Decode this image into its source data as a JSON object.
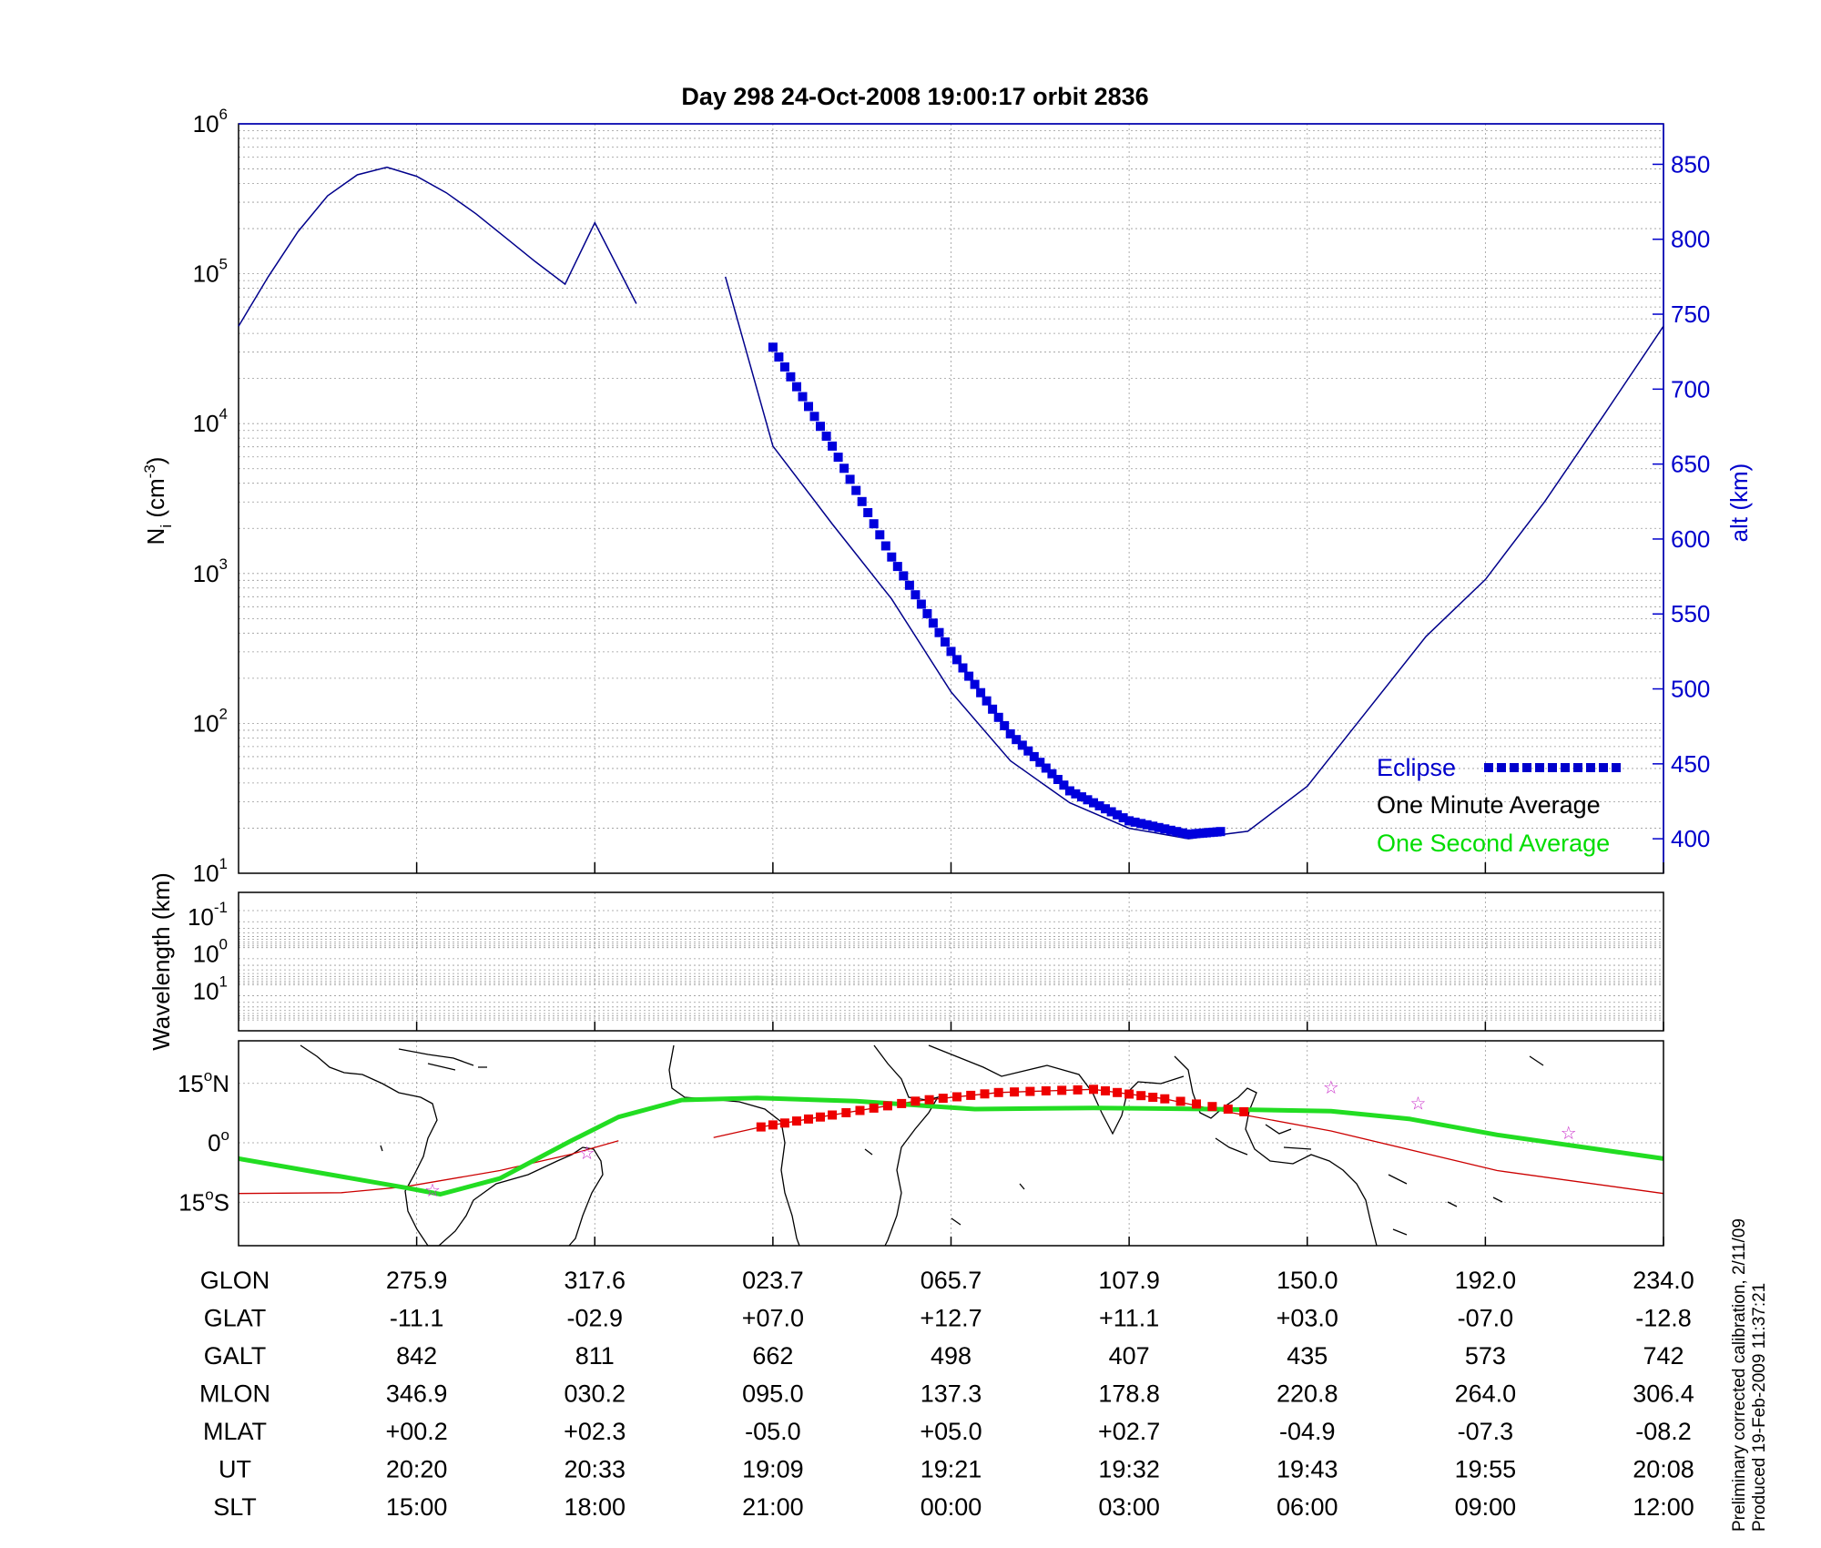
{
  "title": "Day 298  24-Oct-2008 19:00:17   orbit 2836",
  "chart_data": [
    {
      "panel": "ion-density",
      "type": "line",
      "ylabel": "N",
      "ylabel_sub": "i",
      "ylabel_unit_open": " (cm",
      "ylabel_unit_exp": "-3",
      "ylabel_unit_close": ")",
      "yscale": "log",
      "ylim": [
        10,
        1000000
      ],
      "yticks": [
        {
          "base": "10",
          "exp": "1",
          "value": 10
        },
        {
          "base": "10",
          "exp": "2",
          "value": 100
        },
        {
          "base": "10",
          "exp": "3",
          "value": 1000
        },
        {
          "base": "10",
          "exp": "4",
          "value": 10000
        },
        {
          "base": "10",
          "exp": "5",
          "value": 100000
        },
        {
          "base": "10",
          "exp": "6",
          "value": 1000000
        }
      ],
      "y2label": "alt (km)",
      "y2lim": [
        377,
        877
      ],
      "y2ticks": [
        "400",
        "450",
        "500",
        "550",
        "600",
        "650",
        "700",
        "750",
        "800",
        "850"
      ],
      "xlabel_note": "x positions are SLT in hours, unwrapped (21:00 = 21, 00:00 = 24, 03:00 = 27 ...)",
      "xlim": [
        12,
        36
      ],
      "series": [
        {
          "name": "alt",
          "color": "#00008b",
          "x": [
            12.0,
            12.5,
            13.0,
            13.5,
            14.0,
            14.5,
            15.0,
            15.5,
            16.0,
            16.5,
            17.0,
            17.5,
            18.0,
            18.7
          ],
          "y": [
            742,
            775,
            805,
            829,
            843,
            848,
            842,
            831,
            817,
            801,
            785,
            770,
            811,
            757
          ]
        },
        {
          "name": "alt",
          "color": "#00008b",
          "x": [
            20.2,
            21.0,
            22.0,
            23.0,
            24.0,
            25.0,
            26.0,
            27.0,
            28.0,
            29.0,
            30.0,
            31.0,
            32.0,
            33.0,
            34.0,
            35.0,
            36.0
          ],
          "y": [
            775,
            662,
            610,
            560,
            498,
            452,
            424,
            407,
            400,
            405,
            435,
            485,
            535,
            573,
            625,
            683,
            742
          ]
        }
      ],
      "eclipse": {
        "name": "Eclipse",
        "x": [
          21.0,
          22.0,
          23.0,
          24.0,
          25.0,
          26.0,
          27.0,
          28.0,
          28.6
        ],
        "y": [
          728,
          662,
          588,
          525,
          470,
          432,
          412,
          403,
          405
        ]
      },
      "legend": {
        "position": "bottom-right",
        "items": [
          {
            "label": "Eclipse",
            "color": "#0000cc"
          },
          {
            "label": "One Minute Average",
            "color": "#000000"
          },
          {
            "label": "One Second Average",
            "color": "#00dd00"
          }
        ]
      }
    },
    {
      "panel": "wavelength",
      "type": "line",
      "ylabel": "Wavelength (km)",
      "yscale": "log",
      "yticks": [
        {
          "base": "10",
          "exp": "-1"
        },
        {
          "base": "10",
          "exp": "0"
        },
        {
          "base": "10",
          "exp": "1"
        }
      ],
      "series": []
    },
    {
      "panel": "map",
      "type": "line",
      "yticks": [
        {
          "value": "15",
          "deg": "o",
          "hemi": "N",
          "lat": 15
        },
        {
          "value": "0",
          "deg": "o",
          "hemi": "",
          "lat": 0
        },
        {
          "value": "15",
          "deg": "o",
          "hemi": "S",
          "lat": -15
        }
      ],
      "xlim_lon": [
        234,
        594
      ],
      "series": [
        {
          "name": "geographic track",
          "color": "#cc0000",
          "lon": [
            234,
            260,
            276,
            300,
            318,
            330
          ],
          "lat": [
            -12.8,
            -12.6,
            -11.1,
            -7.0,
            -2.9,
            0.5
          ]
        },
        {
          "name": "geographic track",
          "color": "#cc0000",
          "lon": [
            354,
            366,
            384,
            405,
            426,
            450,
            468,
            480,
            510,
            552,
            594
          ],
          "lat": [
            1.3,
            4.0,
            7.0,
            10.5,
            12.7,
            13.5,
            11.1,
            8.5,
            3.0,
            -7.0,
            -12.8
          ]
        },
        {
          "name": "magnetic equator track",
          "color": "#22dd22",
          "lon": [
            234,
            276,
            285,
            300,
            318,
            330,
            346,
            365,
            390,
            420,
            450,
            480,
            510,
            530,
            552,
            594
          ],
          "lat": [
            -4,
            -11.3,
            -13.0,
            -9.0,
            0.5,
            6.5,
            10.8,
            11.3,
            10.5,
            8.5,
            8.8,
            8.5,
            8.0,
            6.0,
            2.0,
            -4.0
          ]
        }
      ],
      "eclipse": {
        "x_lon": [
          366,
          384,
          405,
          426,
          450,
          468,
          492
        ],
        "lat": [
          4.0,
          7.0,
          10.5,
          12.7,
          13.5,
          11.1,
          7.2
        ]
      },
      "stars": [
        {
          "lon": 283,
          "lat": -12.0
        },
        {
          "lon": 322,
          "lat": -2.5
        },
        {
          "lon": 510,
          "lat": 14.0
        },
        {
          "lon": 532,
          "lat": 10.0
        },
        {
          "lon": 570,
          "lat": 2.5
        }
      ]
    }
  ],
  "table": {
    "row_labels": [
      "GLON",
      "GLAT",
      "GALT",
      "MLON",
      "MLAT",
      "UT",
      "SLT"
    ],
    "columns": [
      {
        "GLON": "275.9",
        "GLAT": "-11.1",
        "GALT": "842",
        "MLON": "346.9",
        "MLAT": "+00.2",
        "UT": "20:20",
        "SLT": "15:00"
      },
      {
        "GLON": "317.6",
        "GLAT": "-02.9",
        "GALT": "811",
        "MLON": "030.2",
        "MLAT": "+02.3",
        "UT": "20:33",
        "SLT": "18:00"
      },
      {
        "GLON": "023.7",
        "GLAT": "+07.0",
        "GALT": "662",
        "MLON": "095.0",
        "MLAT": "-05.0",
        "UT": "19:09",
        "SLT": "21:00"
      },
      {
        "GLON": "065.7",
        "GLAT": "+12.7",
        "GALT": "498",
        "MLON": "137.3",
        "MLAT": "+05.0",
        "UT": "19:21",
        "SLT": "00:00"
      },
      {
        "GLON": "107.9",
        "GLAT": "+11.1",
        "GALT": "407",
        "MLON": "178.8",
        "MLAT": "+02.7",
        "UT": "19:32",
        "SLT": "03:00"
      },
      {
        "GLON": "150.0",
        "GLAT": "+03.0",
        "GALT": "435",
        "MLON": "220.8",
        "MLAT": "-04.9",
        "UT": "19:43",
        "SLT": "06:00"
      },
      {
        "GLON": "192.0",
        "GLAT": "-07.0",
        "GALT": "573",
        "MLON": "264.0",
        "MLAT": "-07.3",
        "UT": "19:55",
        "SLT": "09:00"
      },
      {
        "GLON": "234.0",
        "GLAT": "-12.8",
        "GALT": "742",
        "MLON": "306.4",
        "MLAT": "-08.2",
        "UT": "20:08",
        "SLT": "12:00"
      }
    ]
  },
  "footnote": {
    "line1": "Preliminary corrected calibration, 2/11/09",
    "line2": "Produced 19-Feb-2009 11:37:21"
  }
}
